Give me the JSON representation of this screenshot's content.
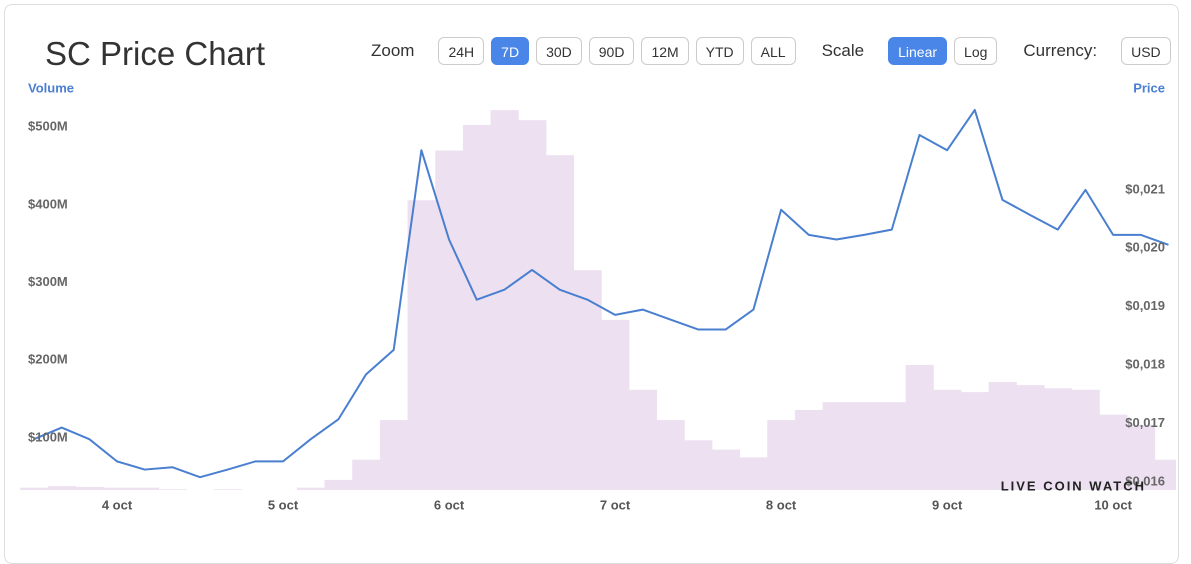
{
  "chart_data": {
    "type": "bar-line",
    "title": "SC Price Chart",
    "y_label": "Volume",
    "y2_label": "Price",
    "categories": [
      null,
      null,
      null,
      "4 oct",
      null,
      null,
      null,
      null,
      null,
      "5 oct",
      null,
      null,
      null,
      null,
      null,
      "6 oct",
      null,
      null,
      null,
      null,
      null,
      "7 oct",
      null,
      null,
      null,
      null,
      null,
      "8 oct",
      null,
      null,
      null,
      null,
      null,
      "9 oct",
      null,
      null,
      null,
      null,
      null,
      "10 oct",
      null,
      null
    ],
    "series": [
      {
        "name": "Volume",
        "type": "bar",
        "color": "#ede1f1",
        "values": [
          36,
          38,
          37,
          36,
          36,
          34,
          33,
          34,
          33,
          33,
          36,
          46,
          72,
          123,
          406,
          470,
          503,
          522,
          509,
          464,
          316,
          252,
          162,
          123,
          97,
          85,
          75,
          123,
          136,
          146,
          146,
          146,
          194,
          162,
          159,
          172,
          168,
          164,
          162,
          130,
          117,
          72
        ]
      },
      {
        "name": "Price",
        "type": "line",
        "axis": "y2",
        "color": "#4a7fd0",
        "values": [
          0.01673,
          0.01693,
          0.01673,
          0.01635,
          0.01621,
          0.01625,
          0.01608,
          0.01621,
          0.01635,
          0.01635,
          0.01673,
          0.01707,
          0.01784,
          0.01826,
          0.02168,
          0.02015,
          0.01912,
          0.01929,
          0.01963,
          0.01929,
          0.01912,
          0.01886,
          0.01895,
          0.01878,
          0.01861,
          0.01861,
          0.01895,
          0.02066,
          0.02023,
          0.02015,
          0.02023,
          0.02032,
          0.02194,
          0.02168,
          0.02237,
          0.02083,
          0.02057,
          0.02032,
          0.021,
          0.02023,
          0.02023,
          0.02006
        ]
      }
    ],
    "ylim": [
      33,
      535
    ],
    "yticks": [
      {
        "value": 100,
        "label": "$100M"
      },
      {
        "value": 200,
        "label": "$200M"
      },
      {
        "value": 300,
        "label": "$300M"
      },
      {
        "value": 400,
        "label": "$400M"
      },
      {
        "value": 500,
        "label": "$500M"
      }
    ],
    "y2lim": [
      0.01586,
      0.02254
    ],
    "y2ticks": [
      {
        "value": 0.016,
        "label": "$0,016"
      },
      {
        "value": 0.017,
        "label": "$0,017"
      },
      {
        "value": 0.018,
        "label": "$0,018"
      },
      {
        "value": 0.019,
        "label": "$0,019"
      },
      {
        "value": 0.02,
        "label": "$0,020"
      },
      {
        "value": 0.021,
        "label": "$0,021"
      }
    ],
    "grid": false
  },
  "controls": {
    "zoom_label": "Zoom",
    "zoom": [
      "24H",
      "7D",
      "30D",
      "90D",
      "12M",
      "YTD",
      "ALL"
    ],
    "zoom_active": 1,
    "scale_label": "Scale",
    "scale": [
      "Linear",
      "Log"
    ],
    "scale_active": 0,
    "currency_label": "Currency:",
    "currency": [
      "USD"
    ]
  },
  "watermark": "LIVE COIN WATCH"
}
